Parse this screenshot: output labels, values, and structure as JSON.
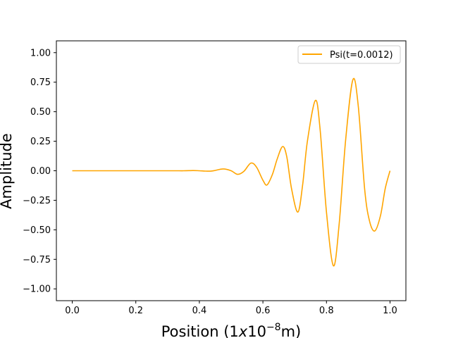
{
  "chart_data": {
    "type": "line",
    "xlabel_prefix": "Position (1",
    "xlabel_italic": "x",
    "xlabel_base": "10",
    "xlabel_exponent": "−8",
    "xlabel_suffix": "m)",
    "ylabel": "Amplitude",
    "xlim": [
      -0.05,
      1.05
    ],
    "ylim": [
      -1.1,
      1.1
    ],
    "xticks": [
      0.0,
      0.2,
      0.4,
      0.6,
      0.8,
      1.0
    ],
    "xtick_labels": [
      "0.0",
      "0.2",
      "0.4",
      "0.6",
      "0.8",
      "1.0"
    ],
    "yticks": [
      -1.0,
      -0.75,
      -0.5,
      -0.25,
      0.0,
      0.25,
      0.5,
      0.75,
      1.0
    ],
    "ytick_labels": [
      "−1.00",
      "−0.75",
      "−0.50",
      "−0.25",
      "0.00",
      "0.25",
      "0.50",
      "0.75",
      "1.00"
    ],
    "grid": false,
    "legend_position": "top-right",
    "series": [
      {
        "name": "Psi(t=0.0012)",
        "color": "#ffa500",
        "x": [
          0.0,
          0.1,
          0.2,
          0.3,
          0.35,
          0.38,
          0.4,
          0.42,
          0.44,
          0.475,
          0.5,
          0.52,
          0.54,
          0.562,
          0.58,
          0.6,
          0.613,
          0.63,
          0.645,
          0.662,
          0.675,
          0.69,
          0.71,
          0.725,
          0.74,
          0.765,
          0.78,
          0.8,
          0.822,
          0.84,
          0.86,
          0.883,
          0.9,
          0.92,
          0.935,
          0.952,
          0.97,
          0.985,
          1.0
        ],
        "y": [
          0.0,
          0.0,
          0.0,
          0.0,
          0.0,
          0.002,
          0.0,
          -0.003,
          -0.002,
          0.015,
          0.0,
          -0.03,
          -0.005,
          0.065,
          0.03,
          -0.08,
          -0.12,
          -0.03,
          0.1,
          0.205,
          0.12,
          -0.15,
          -0.35,
          -0.12,
          0.25,
          0.595,
          0.35,
          -0.35,
          -0.805,
          -0.45,
          0.25,
          0.77,
          0.55,
          -0.15,
          -0.42,
          -0.51,
          -0.38,
          -0.15,
          0.0
        ]
      }
    ]
  }
}
